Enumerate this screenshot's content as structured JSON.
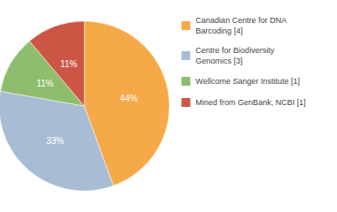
{
  "chart_data": {
    "type": "pie",
    "categories": [
      "Canadian Centre for DNA\nBarcoding [4]",
      "Centre for Biodiversity\nGenomics [3]",
      "Wellcome Sanger Institute [1]",
      "Mined from GenBank, NCBI [1]"
    ],
    "values": [
      44,
      33,
      11,
      11
    ],
    "value_labels": [
      "44%",
      "33%",
      "11%",
      "11%"
    ],
    "colors": [
      "#F5A947",
      "#A8BDD4",
      "#8FBD6E",
      "#CC5544"
    ],
    "data_labels": true,
    "legend": "right"
  }
}
